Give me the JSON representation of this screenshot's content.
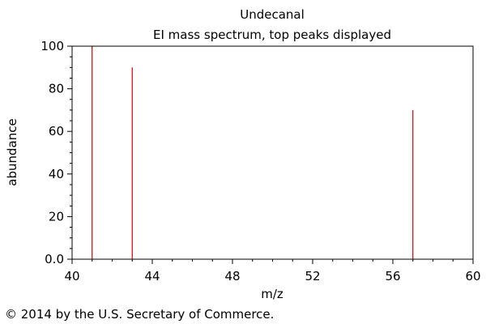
{
  "chart_data": {
    "type": "bar",
    "title": "Undecanal",
    "subtitle": "EI mass spectrum, top peaks displayed",
    "xlabel": "m/z",
    "ylabel": "abundance",
    "xlim": [
      40,
      60
    ],
    "ylim": [
      0,
      100
    ],
    "xticks": [
      40,
      44,
      48,
      52,
      56,
      60
    ],
    "yticks": [
      0,
      20,
      40,
      60,
      80,
      100
    ],
    "ytick_labels": [
      "0.0",
      "20",
      "40",
      "60",
      "80",
      "100"
    ],
    "grid": false,
    "series": [
      {
        "x": [
          41,
          43,
          57
        ],
        "values": [
          100,
          90,
          70
        ],
        "color": "#cc0000"
      }
    ]
  },
  "footer": {
    "copyright": "© 2014 by the U.S. Secretary of Commerce."
  }
}
